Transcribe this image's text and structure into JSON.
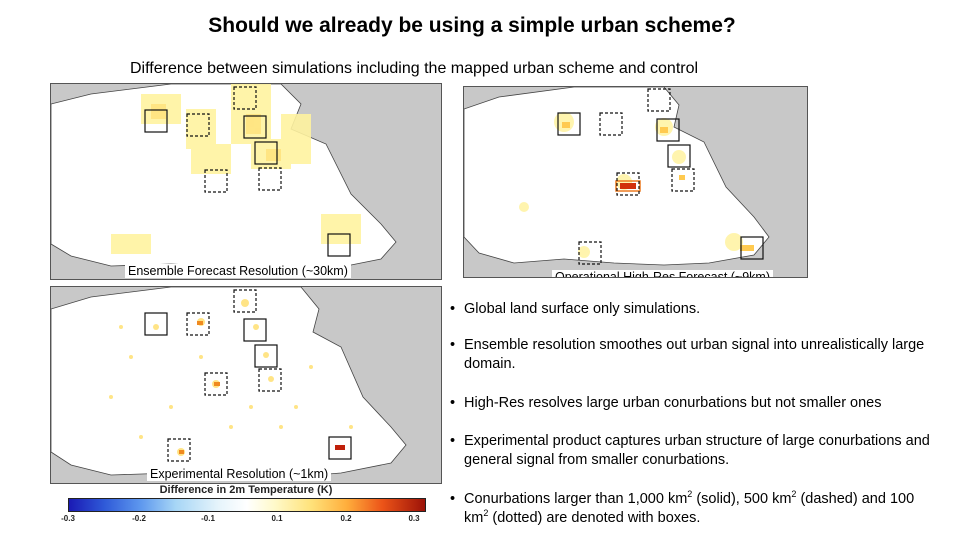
{
  "header": {
    "title": "Should we already be using a simple urban scheme?",
    "subtitle": "Difference between simulations including the mapped urban scheme and control"
  },
  "panels": [
    {
      "label": "Ensemble Forecast Resolution (~30km)"
    },
    {
      "label": "Operational High-Res Forecast (~9km)"
    },
    {
      "label": "Experimental Resolution (~1km)"
    }
  ],
  "colorbar": {
    "title": "Difference in 2m Temperature (K)",
    "ticks": [
      "-0.3",
      "-0.2",
      "-0.1",
      "0.1",
      "0.2",
      "0.3"
    ],
    "colors": [
      "#1a1ab4",
      "#5d97ee",
      "#ffffff",
      "#ffe27a",
      "#ec5418",
      "#9c1208"
    ]
  },
  "bullets": [
    {
      "text": "Global land surface only simulations."
    },
    {
      "text": "Ensemble resolution smoothes out urban signal into unrealistically large domain."
    },
    {
      "text": "High-Res resolves large urban conurbations but not smaller ones"
    },
    {
      "text": "Experimental product captures urban structure of large conurbations and general signal from smaller conurbations."
    },
    {
      "text_a": "Conurbations larger than 1,000 km",
      "sup_a": "2",
      "text_b": " (solid), 500 km",
      "sup_b": "2",
      "text_c": " (dashed) and 100 km",
      "sup_c": "2",
      "text_d": " (dotted) are denoted with boxes."
    }
  ],
  "bullet_glyph": "•"
}
